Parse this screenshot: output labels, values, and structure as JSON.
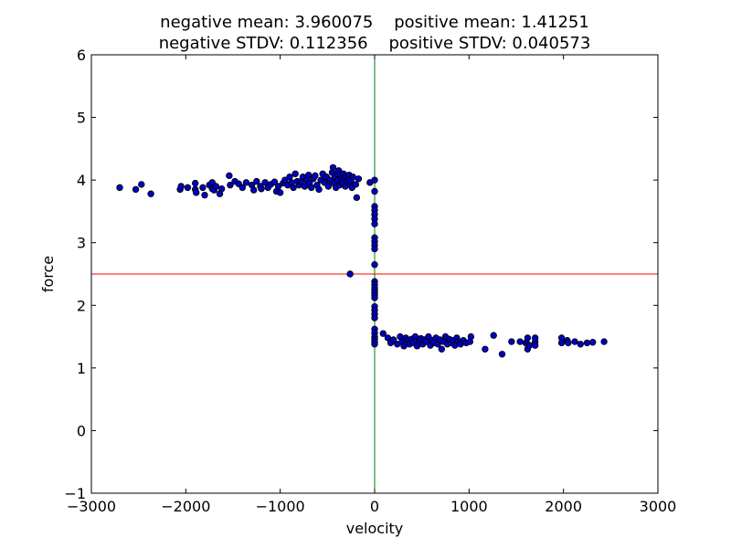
{
  "chart_data": {
    "type": "scatter",
    "title_lines": [
      "negative mean: 3.960075    positive mean: 1.41251",
      "negative STDV: 0.112356    positive STDV: 0.040573"
    ],
    "xlabel": "velocity",
    "ylabel": "force",
    "xlim": [
      -3000,
      3000
    ],
    "ylim": [
      -1,
      6
    ],
    "xticks": [
      -3000,
      -2000,
      -1000,
      0,
      1000,
      2000,
      3000
    ],
    "yticks": [
      -1,
      0,
      1,
      2,
      3,
      4,
      5,
      6
    ],
    "grid": false,
    "reference_lines": [
      {
        "orientation": "horizontal",
        "value": 2.5,
        "color": "#ff0000"
      },
      {
        "orientation": "vertical",
        "value": 0,
        "color": "#008000"
      }
    ],
    "marker_color": "#0000bf",
    "marker_edge": "#000000",
    "points": [
      [
        -2700,
        3.88
      ],
      [
        -2530,
        3.85
      ],
      [
        -2470,
        3.93
      ],
      [
        -2370,
        3.78
      ],
      [
        -2060,
        3.85
      ],
      [
        -2050,
        3.9
      ],
      [
        -1980,
        3.88
      ],
      [
        -1900,
        3.95
      ],
      [
        -1900,
        3.85
      ],
      [
        -1890,
        3.8
      ],
      [
        -1820,
        3.88
      ],
      [
        -1800,
        3.76
      ],
      [
        -1750,
        3.92
      ],
      [
        -1720,
        3.96
      ],
      [
        -1720,
        3.86
      ],
      [
        -1700,
        3.84
      ],
      [
        -1680,
        3.9
      ],
      [
        -1640,
        3.78
      ],
      [
        -1620,
        3.86
      ],
      [
        -1540,
        4.07
      ],
      [
        -1530,
        3.92
      ],
      [
        -1480,
        3.98
      ],
      [
        -1440,
        3.94
      ],
      [
        -1400,
        3.88
      ],
      [
        -1360,
        3.96
      ],
      [
        -1300,
        3.92
      ],
      [
        -1280,
        3.84
      ],
      [
        -1250,
        3.98
      ],
      [
        -1210,
        3.9
      ],
      [
        -1200,
        3.86
      ],
      [
        -1160,
        3.96
      ],
      [
        -1130,
        3.88
      ],
      [
        -1100,
        3.93
      ],
      [
        -1060,
        3.97
      ],
      [
        -1040,
        3.82
      ],
      [
        -1020,
        3.9
      ],
      [
        -1000,
        3.8
      ],
      [
        -970,
        3.95
      ],
      [
        -950,
        4.0
      ],
      [
        -920,
        3.92
      ],
      [
        -900,
        4.05
      ],
      [
        -880,
        3.96
      ],
      [
        -860,
        3.88
      ],
      [
        -840,
        4.1
      ],
      [
        -820,
        3.98
      ],
      [
        -800,
        3.92
      ],
      [
        -780,
        3.98
      ],
      [
        -760,
        4.05
      ],
      [
        -740,
        3.9
      ],
      [
        -720,
        4.0
      ],
      [
        -700,
        4.08
      ],
      [
        -690,
        3.95
      ],
      [
        -670,
        3.88
      ],
      [
        -650,
        4.02
      ],
      [
        -630,
        4.07
      ],
      [
        -610,
        3.92
      ],
      [
        -590,
        3.85
      ],
      [
        -570,
        4.0
      ],
      [
        -550,
        4.1
      ],
      [
        -530,
        3.96
      ],
      [
        -510,
        4.05
      ],
      [
        -490,
        3.9
      ],
      [
        -470,
        4.0
      ],
      [
        -450,
        4.12
      ],
      [
        -440,
        4.2
      ],
      [
        -430,
        3.95
      ],
      [
        -420,
        4.05
      ],
      [
        -410,
        3.88
      ],
      [
        -400,
        4.1
      ],
      [
        -390,
        4.0
      ],
      [
        -380,
        4.15
      ],
      [
        -370,
        3.92
      ],
      [
        -360,
        4.08
      ],
      [
        -350,
        4.02
      ],
      [
        -340,
        3.96
      ],
      [
        -330,
        4.1
      ],
      [
        -320,
        4.04
      ],
      [
        -310,
        3.9
      ],
      [
        -300,
        4.06
      ],
      [
        -290,
        3.98
      ],
      [
        -280,
        4.02
      ],
      [
        -270,
        4.08
      ],
      [
        -260,
        3.94
      ],
      [
        -250,
        4.0
      ],
      [
        -240,
        3.88
      ],
      [
        -230,
        4.05
      ],
      [
        -200,
        3.93
      ],
      [
        -190,
        3.72
      ],
      [
        -170,
        4.02
      ],
      [
        -260,
        2.5
      ],
      [
        -50,
        3.96
      ],
      [
        0,
        4.0
      ],
      [
        0,
        3.82
      ],
      [
        0,
        3.58
      ],
      [
        0,
        3.52
      ],
      [
        0,
        3.45
      ],
      [
        0,
        3.38
      ],
      [
        0,
        3.3
      ],
      [
        0,
        3.08
      ],
      [
        0,
        3.02
      ],
      [
        0,
        2.96
      ],
      [
        0,
        2.9
      ],
      [
        0,
        2.65
      ],
      [
        0,
        2.38
      ],
      [
        0,
        2.33
      ],
      [
        0,
        2.28
      ],
      [
        0,
        2.24
      ],
      [
        0,
        2.2
      ],
      [
        0,
        2.16
      ],
      [
        0,
        2.12
      ],
      [
        0,
        1.98
      ],
      [
        0,
        1.92
      ],
      [
        0,
        1.86
      ],
      [
        0,
        1.8
      ],
      [
        0,
        1.62
      ],
      [
        0,
        1.56
      ],
      [
        0,
        1.5
      ],
      [
        0,
        1.46
      ],
      [
        0,
        1.42
      ],
      [
        0,
        1.38
      ],
      [
        90,
        1.55
      ],
      [
        140,
        1.48
      ],
      [
        170,
        1.4
      ],
      [
        200,
        1.45
      ],
      [
        240,
        1.38
      ],
      [
        270,
        1.5
      ],
      [
        290,
        1.42
      ],
      [
        310,
        1.35
      ],
      [
        330,
        1.48
      ],
      [
        350,
        1.44
      ],
      [
        370,
        1.38
      ],
      [
        390,
        1.46
      ],
      [
        410,
        1.4
      ],
      [
        430,
        1.5
      ],
      [
        450,
        1.35
      ],
      [
        470,
        1.43
      ],
      [
        490,
        1.47
      ],
      [
        510,
        1.38
      ],
      [
        530,
        1.45
      ],
      [
        550,
        1.42
      ],
      [
        570,
        1.5
      ],
      [
        590,
        1.36
      ],
      [
        610,
        1.44
      ],
      [
        630,
        1.4
      ],
      [
        650,
        1.48
      ],
      [
        670,
        1.38
      ],
      [
        690,
        1.45
      ],
      [
        710,
        1.3
      ],
      [
        730,
        1.42
      ],
      [
        750,
        1.5
      ],
      [
        770,
        1.38
      ],
      [
        790,
        1.46
      ],
      [
        810,
        1.4
      ],
      [
        830,
        1.44
      ],
      [
        850,
        1.36
      ],
      [
        870,
        1.48
      ],
      [
        890,
        1.42
      ],
      [
        910,
        1.38
      ],
      [
        940,
        1.44
      ],
      [
        970,
        1.4
      ],
      [
        1010,
        1.42
      ],
      [
        1020,
        1.5
      ],
      [
        1170,
        1.3
      ],
      [
        1260,
        1.52
      ],
      [
        1350,
        1.22
      ],
      [
        1450,
        1.42
      ],
      [
        1540,
        1.42
      ],
      [
        1600,
        1.4
      ],
      [
        1620,
        1.3
      ],
      [
        1620,
        1.38
      ],
      [
        1620,
        1.48
      ],
      [
        1640,
        1.36
      ],
      [
        1700,
        1.42
      ],
      [
        1700,
        1.48
      ],
      [
        1700,
        1.36
      ],
      [
        1980,
        1.48
      ],
      [
        1980,
        1.4
      ],
      [
        2040,
        1.44
      ],
      [
        2050,
        1.4
      ],
      [
        2120,
        1.42
      ],
      [
        2180,
        1.38
      ],
      [
        2250,
        1.4
      ],
      [
        2310,
        1.41
      ],
      [
        2430,
        1.42
      ]
    ]
  }
}
